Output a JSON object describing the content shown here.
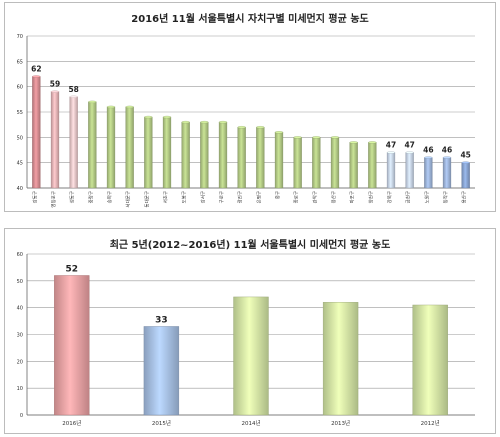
{
  "chart_data": [
    {
      "type": "bar",
      "title": "2016년 11월 서울특별시 자치구별 미세먼지 평균 농도",
      "xlabel": "",
      "ylabel": "",
      "ylim": [
        40,
        70
      ],
      "yticks": [
        40,
        45,
        50,
        55,
        60,
        65,
        70
      ],
      "grid": true,
      "legend": "none",
      "categories": [
        "강동구",
        "영등포구",
        "성동구",
        "중랑구",
        "송파구",
        "서대문구",
        "동대문구",
        "서초구",
        "도봉구",
        "강서구",
        "구로구",
        "광진구",
        "은평구",
        "중구",
        "종로구",
        "관악구",
        "용산구",
        "마포구",
        "양천구",
        "강북구",
        "금천구",
        "노원구",
        "동작구",
        "용산구"
      ],
      "values": [
        62,
        59,
        58,
        57,
        56,
        56,
        54,
        54,
        53,
        53,
        53,
        52,
        52,
        51,
        50,
        50,
        50,
        49,
        49,
        47,
        47,
        46,
        46,
        45
      ],
      "data_labels": [
        "62",
        "59",
        "58",
        "",
        "",
        "",
        "",
        "",
        "",
        "",
        "",
        "",
        "",
        "",
        "",
        "",
        "",
        "",
        "",
        "47",
        "47",
        "46",
        "46",
        "45"
      ],
      "bar_colors": [
        "#d98e93",
        "#e8b5b8",
        "#ecc9cb",
        "#b4cc86",
        "#b4cc86",
        "#b4cc86",
        "#b4cc86",
        "#b4cc86",
        "#b4cc86",
        "#b4cc86",
        "#b4cc86",
        "#b4cc86",
        "#b4cc86",
        "#b4cc86",
        "#b4cc86",
        "#b4cc86",
        "#b4cc86",
        "#b4cc86",
        "#b4cc86",
        "#c9d6ea",
        "#c9d6ea",
        "#9fb6dc",
        "#9fb6dc",
        "#8aa6d4"
      ]
    },
    {
      "type": "bar",
      "title": "최근 5년(2012~2016년) 11월 서울특별시 미세먼지 평균 농도",
      "xlabel": "",
      "ylabel": "",
      "ylim": [
        0,
        60
      ],
      "yticks": [
        0,
        10,
        20,
        30,
        40,
        50,
        60
      ],
      "grid": true,
      "legend": "none",
      "categories": [
        "2016년",
        "2015년",
        "2014년",
        "2013년",
        "2012년"
      ],
      "values": [
        52,
        33,
        44,
        42,
        41
      ],
      "data_labels": [
        "52",
        "33",
        "",
        "",
        ""
      ],
      "bar_colors": [
        "#eda3a5",
        "#a8c2e6",
        "#d6e9a6",
        "#d6e9a6",
        "#d6e9a6"
      ]
    }
  ]
}
